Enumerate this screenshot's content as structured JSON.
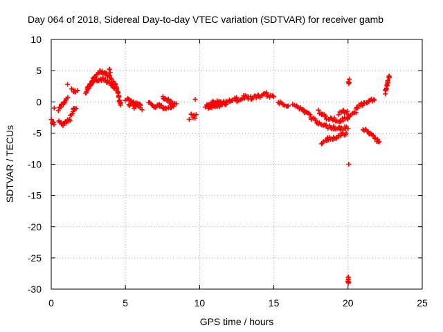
{
  "chart_data": {
    "type": "scatter",
    "title": "Day 064 of 2018, Sidereal Day-to-day VTEC variation (SDTVAR) for receiver gamb",
    "xlabel": "GPS time / hours",
    "ylabel": "SDTVAR / TECUs",
    "xlim": [
      0,
      25
    ],
    "ylim": [
      -30,
      10
    ],
    "xticks": [
      0,
      5,
      10,
      15,
      20,
      25
    ],
    "yticks": [
      10,
      5,
      0,
      -5,
      -10,
      -15,
      -20,
      -25,
      -30
    ],
    "grid": true,
    "marker": "+",
    "color": "#ff0000",
    "segments": [
      {
        "x": [
          0.0,
          0.1,
          0.2
        ],
        "y": [
          -2.8,
          -3.2,
          -3.5
        ]
      },
      {
        "x": [
          0.2
        ],
        "y": [
          -1.0
        ]
      },
      {
        "x": [
          0.5,
          0.7,
          0.9,
          1.1,
          1.3
        ],
        "y": [
          -3.3,
          -3.6,
          -3.4,
          -3.0,
          -2.8
        ]
      },
      {
        "x": [
          0.5,
          0.7,
          0.9,
          1.1
        ],
        "y": [
          -1.2,
          -0.6,
          0.0,
          0.5
        ]
      },
      {
        "x": [
          1.1
        ],
        "y": [
          2.8
        ]
      },
      {
        "x": [
          1.3,
          1.5,
          1.7
        ],
        "y": [
          -2.0,
          -1.3,
          -0.8
        ]
      },
      {
        "x": [
          1.4,
          1.6,
          1.8
        ],
        "y": [
          2.0,
          1.8,
          1.6
        ]
      },
      {
        "x": [
          2.3,
          2.6,
          2.9,
          3.2,
          3.5,
          3.8,
          4.1,
          4.3
        ],
        "y": [
          1.5,
          2.5,
          3.2,
          3.6,
          3.6,
          3.3,
          2.8,
          2.2
        ]
      },
      {
        "x": [
          2.4,
          2.7,
          3.0,
          3.3,
          3.6,
          3.9,
          4.2
        ],
        "y": [
          2.0,
          3.0,
          4.2,
          4.8,
          4.5,
          4.0,
          3.4
        ]
      },
      {
        "x": [
          3.9,
          4.0
        ],
        "y": [
          5.2,
          4.8
        ]
      },
      {
        "x": [
          4.3,
          4.5,
          4.6,
          4.7
        ],
        "y": [
          3.0,
          1.5,
          0.2,
          -0.6
        ]
      },
      {
        "x": [
          5.0,
          5.4,
          5.8,
          6.1
        ],
        "y": [
          0.5,
          0.0,
          -0.5,
          -1.0
        ]
      },
      {
        "x": [
          5.2,
          5.6,
          6.0
        ],
        "y": [
          -0.3,
          -0.8,
          -0.2
        ]
      },
      {
        "x": [
          6.6,
          7.0,
          7.3
        ],
        "y": [
          -0.2,
          -0.8,
          -0.5
        ]
      },
      {
        "x": [
          7.3,
          7.7,
          8.1,
          8.4
        ],
        "y": [
          -0.5,
          -1.2,
          -0.8,
          -0.2
        ]
      },
      {
        "x": [
          7.5,
          7.9,
          8.3
        ],
        "y": [
          0.8,
          0.2,
          -0.3
        ]
      },
      {
        "x": [
          9.3
        ],
        "y": [
          -2.8
        ]
      },
      {
        "x": [
          9.4,
          9.6,
          9.8
        ],
        "y": [
          -2.2,
          -2.4,
          -2.3
        ]
      },
      {
        "x": [
          9.7
        ],
        "y": [
          0.4
        ]
      },
      {
        "x": [
          10.4,
          10.8,
          11.2,
          11.6,
          12.0,
          12.5
        ],
        "y": [
          -0.8,
          -0.2,
          0.0,
          -0.2,
          0.2,
          0.5
        ]
      },
      {
        "x": [
          10.6,
          11.0,
          11.4,
          11.8
        ],
        "y": [
          -1.2,
          -0.8,
          -0.5,
          -0.3
        ]
      },
      {
        "x": [
          12.5,
          13.0,
          13.5,
          14.0,
          14.5,
          15.0
        ],
        "y": [
          0.2,
          0.8,
          0.6,
          0.9,
          1.2,
          0.6
        ]
      },
      {
        "x": [
          15.3,
          15.6,
          16.0
        ],
        "y": [
          0.0,
          -0.3,
          -0.5
        ]
      },
      {
        "x": [
          16.3,
          16.7,
          17.1,
          17.5
        ],
        "y": [
          -0.5,
          -1.0,
          -1.6,
          -2.2
        ]
      },
      {
        "x": [
          17.5,
          18.0,
          18.5,
          19.0,
          19.5,
          20.0
        ],
        "y": [
          -2.5,
          -3.5,
          -3.9,
          -4.1,
          -4.3,
          -4.2
        ]
      },
      {
        "x": [
          18.0,
          18.5,
          19.0,
          19.5,
          20.0,
          20.5
        ],
        "y": [
          -1.5,
          -2.5,
          -2.8,
          -3.0,
          -2.5,
          -1.8
        ]
      },
      {
        "x": [
          18.2,
          18.6,
          19.0,
          19.5,
          19.9
        ],
        "y": [
          -6.5,
          -6.0,
          -5.8,
          -5.4,
          -5.0
        ]
      },
      {
        "x": [
          19.4,
          19.7,
          20.0
        ],
        "y": [
          -2.0,
          -1.5,
          -1.8
        ]
      },
      {
        "x": [
          20.05,
          20.05
        ],
        "y": [
          3.6,
          2.8
        ]
      },
      {
        "x": [
          20.05
        ],
        "y": [
          -10.0
        ]
      },
      {
        "x": [
          20.0,
          20.0,
          20.0
        ],
        "y": [
          -28.0,
          -28.6,
          -29.2
        ]
      },
      {
        "x": [
          20.5,
          20.9,
          21.3,
          21.8
        ],
        "y": [
          -1.0,
          -0.5,
          -0.2,
          0.5
        ]
      },
      {
        "x": [
          21.0,
          21.4,
          21.8,
          22.1
        ],
        "y": [
          -4.3,
          -5.0,
          -5.8,
          -6.6
        ]
      },
      {
        "x": [
          22.5,
          22.6,
          22.7,
          22.8
        ],
        "y": [
          1.5,
          2.5,
          3.5,
          4.2
        ]
      }
    ]
  }
}
